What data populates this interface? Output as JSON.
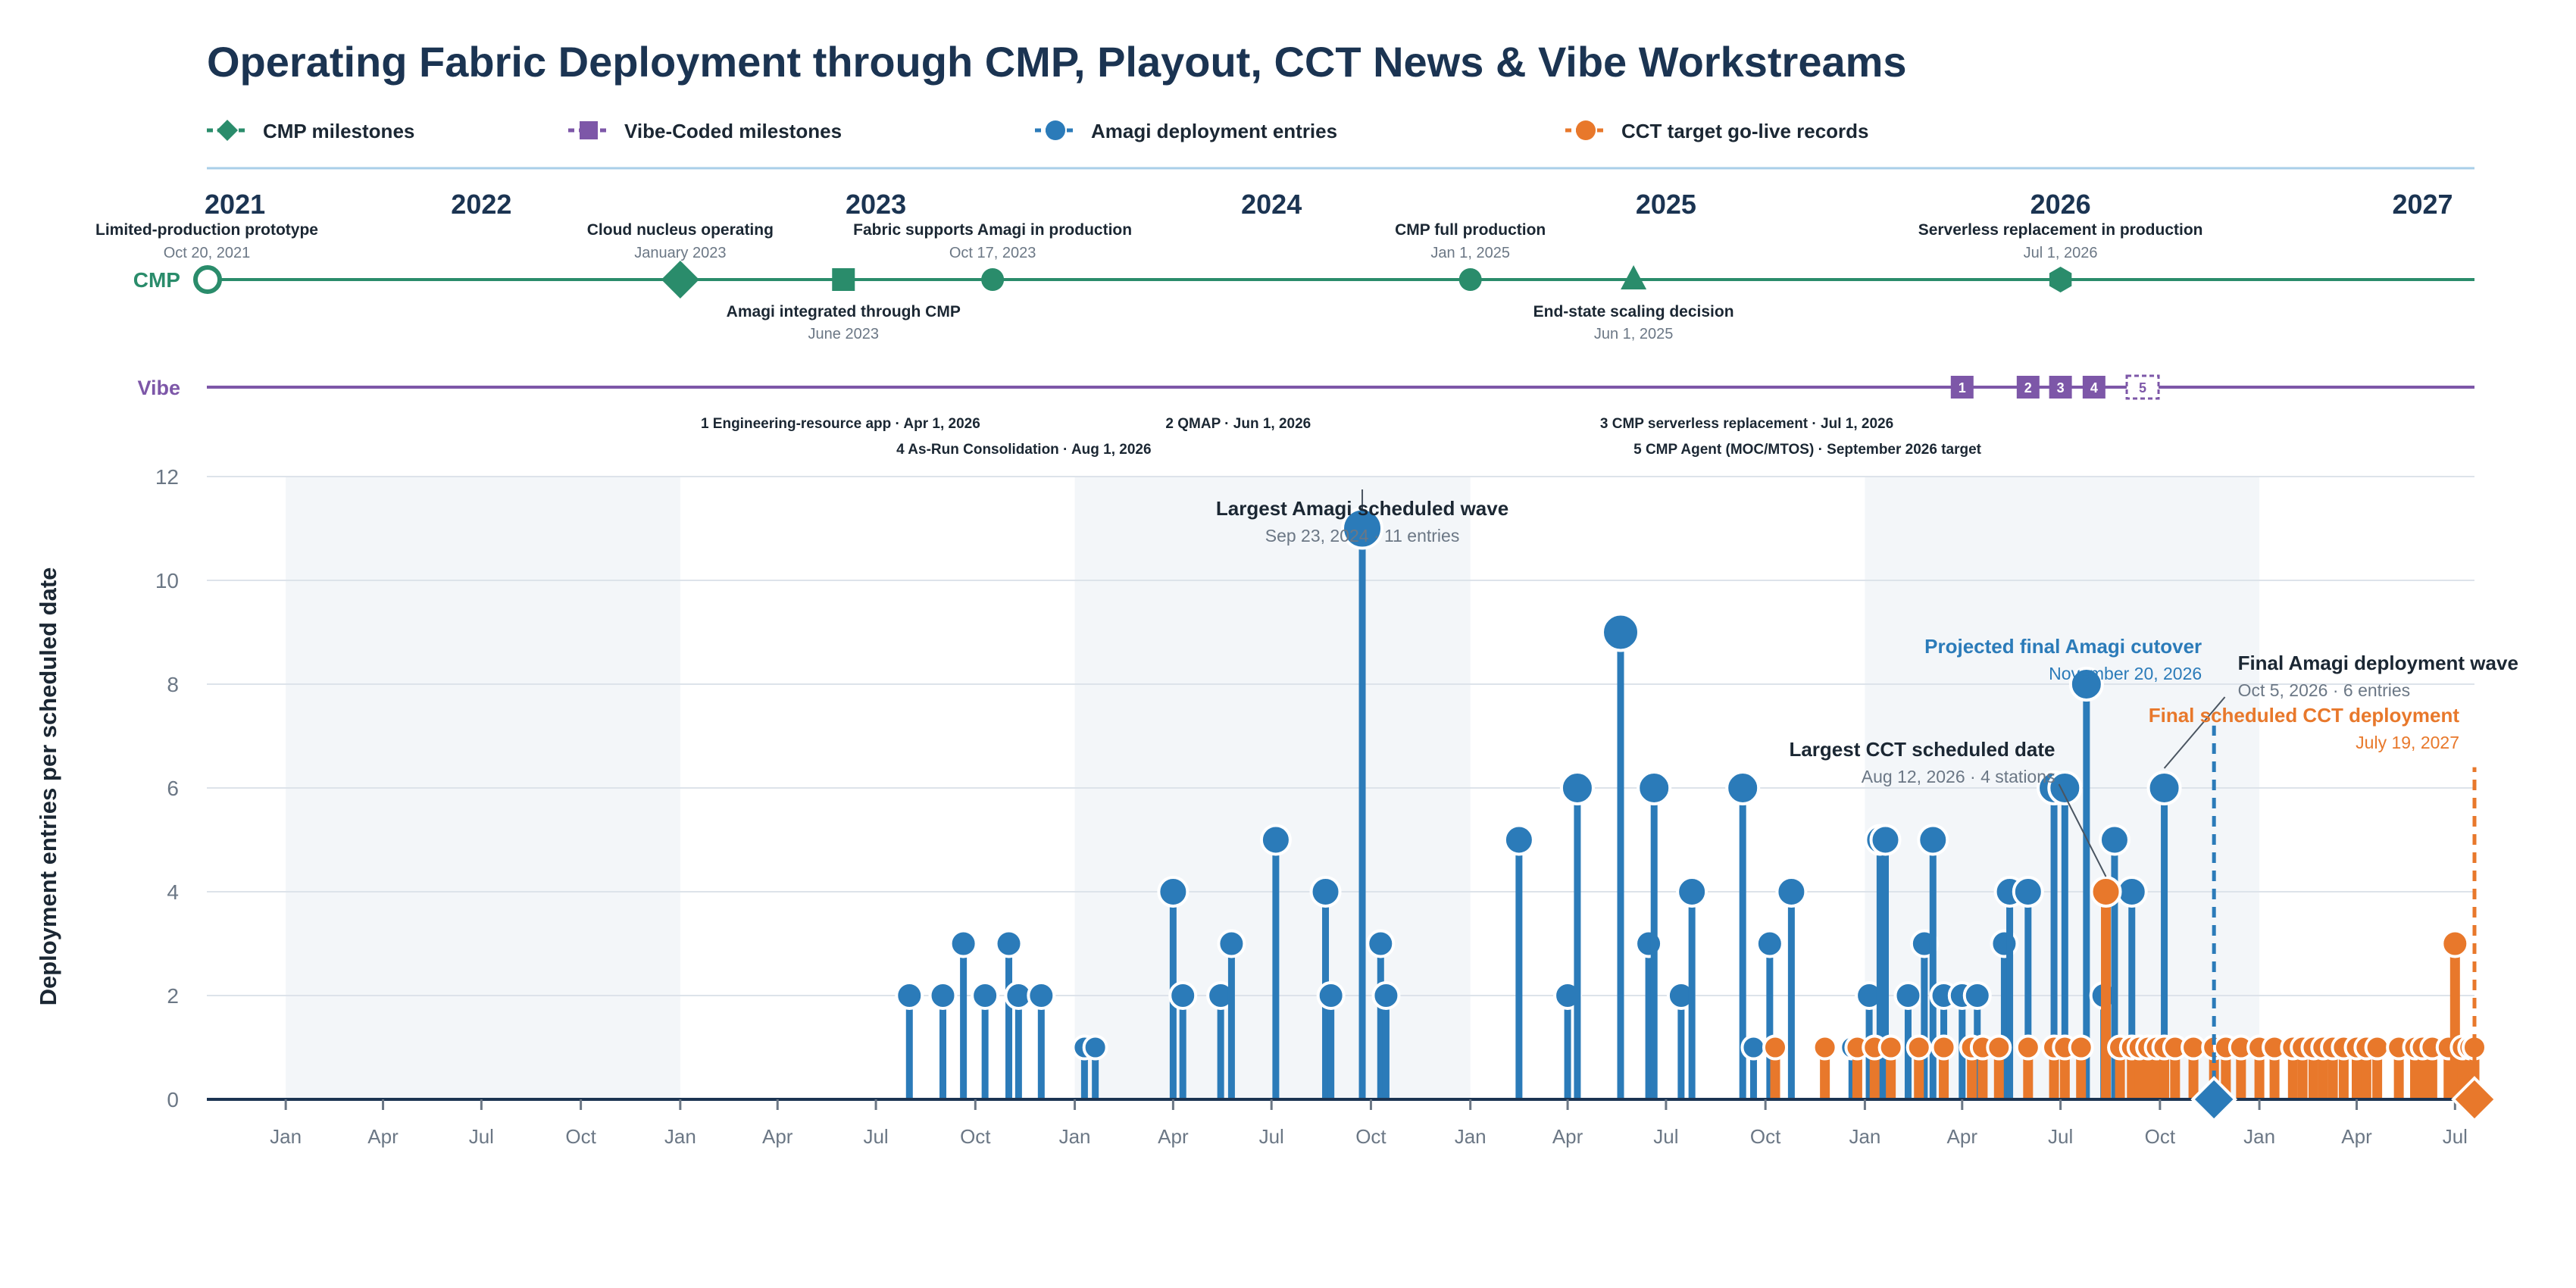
{
  "chart_data": {
    "type": "lollipop-timeline",
    "title": "Operating Fabric Deployment through CMP, Playout, CCT News & Vibe Workstreams",
    "legend": [
      {
        "label": "CMP milestones",
        "color": "#2a8c6b",
        "marker": "diamond"
      },
      {
        "label": "Vibe-Coded milestones",
        "color": "#7d57a8",
        "marker": "square"
      },
      {
        "label": "Amagi deployment entries",
        "color": "#2b7bb9",
        "marker": "circle"
      },
      {
        "label": "CCT target go-live records",
        "color": "#e8782b",
        "marker": "circle"
      }
    ],
    "colors": {
      "title": "#1b3452",
      "cmp": "#2a8c6b",
      "vibe": "#7d57a8",
      "amagi": "#2b7bb9",
      "cct": "#e8782b",
      "grid": "#dde3ea",
      "band": "#f3f6f9",
      "rule": "#a9cfe8",
      "muted": "#6b7785",
      "dark": "#1b2733"
    },
    "years": [
      "2021",
      "2022",
      "2023",
      "2024",
      "2025",
      "2026",
      "2027"
    ],
    "x_tick_labels": [
      "Jan",
      "Apr",
      "Jul",
      "Oct",
      "Jan",
      "Apr",
      "Jul",
      "Oct",
      "Jan",
      "Apr",
      "Jul",
      "Oct",
      "Jan",
      "Apr",
      "Jul",
      "Oct",
      "Jan",
      "Apr",
      "Jul",
      "Oct",
      "Jan",
      "Apr",
      "Jul"
    ],
    "x_range": [
      "2021-10-20",
      "2027-07-19"
    ],
    "ylabel": "Deployment entries per scheduled date",
    "ylim": [
      0,
      12
    ],
    "y_ticks": [
      0,
      2,
      4,
      6,
      8,
      10,
      12
    ],
    "grid": true,
    "cmp_track_label": "CMP",
    "cmp_milestones": [
      {
        "date": "2021-10-20",
        "title": "Limited-production prototype",
        "date_label": "Oct 20, 2021",
        "marker": "open-circle",
        "label_pos": "above"
      },
      {
        "date": "2023-01-01",
        "title": "Cloud nucleus operating",
        "date_label": "January 2023",
        "marker": "diamond",
        "label_pos": "above"
      },
      {
        "date": "2023-06-01",
        "title": "Amagi integrated through CMP",
        "date_label": "June 2023",
        "marker": "square",
        "label_pos": "below"
      },
      {
        "date": "2023-10-17",
        "title": "Fabric supports Amagi in production",
        "date_label": "Oct 17, 2023",
        "marker": "circle",
        "label_pos": "above"
      },
      {
        "date": "2025-01-01",
        "title": "CMP full production",
        "date_label": "Jan 1, 2025",
        "marker": "circle",
        "label_pos": "above"
      },
      {
        "date": "2025-06-01",
        "title": "End-state scaling decision",
        "date_label": "Jun 1, 2025",
        "marker": "triangle",
        "label_pos": "below"
      },
      {
        "date": "2026-07-01",
        "title": "Serverless replacement in production",
        "date_label": "Jul 1, 2026",
        "marker": "hexagon",
        "label_pos": "above"
      }
    ],
    "vibe_track_label": "Vibe",
    "vibe_milestones": [
      {
        "num": "1",
        "date": "2026-04-01",
        "dashed": false
      },
      {
        "num": "2",
        "date": "2026-06-01",
        "dashed": false
      },
      {
        "num": "3",
        "date": "2026-07-01",
        "dashed": false
      },
      {
        "num": "4",
        "date": "2026-08-01",
        "dashed": false
      },
      {
        "num": "5",
        "date": "2026-09-15",
        "dashed": true
      }
    ],
    "vibe_notes": [
      {
        "text": "1 Engineering-resource app · Apr 1, 2026",
        "anchor": "2023-01-20",
        "row": 0
      },
      {
        "text": "4 As-Run Consolidation · Aug 1, 2026",
        "anchor": "2023-07-20",
        "row": 1
      },
      {
        "text": "2 QMAP · Jun 1, 2026",
        "anchor": "2024-03-25",
        "row": 0
      },
      {
        "text": "3 CMP serverless replacement · Jul 1, 2026",
        "anchor": "2025-05-01",
        "row": 0
      },
      {
        "text": "5 CMP Agent (MOC/MTOS) · September 2026 target",
        "anchor": "2025-06-01",
        "row": 1
      }
    ],
    "series": [
      {
        "name": "Amagi deployment entries",
        "color": "#2b7bb9",
        "points": [
          [
            "2023-08-01",
            2
          ],
          [
            "2023-09-01",
            2
          ],
          [
            "2023-09-20",
            3
          ],
          [
            "2023-10-10",
            2
          ],
          [
            "2023-11-01",
            3
          ],
          [
            "2023-11-10",
            2
          ],
          [
            "2023-12-01",
            2
          ],
          [
            "2024-01-10",
            1
          ],
          [
            "2024-01-20",
            1
          ],
          [
            "2024-04-01",
            4
          ],
          [
            "2024-04-10",
            2
          ],
          [
            "2024-05-15",
            2
          ],
          [
            "2024-05-25",
            3
          ],
          [
            "2024-07-05",
            5
          ],
          [
            "2024-08-20",
            4
          ],
          [
            "2024-08-25",
            2
          ],
          [
            "2024-09-23",
            11
          ],
          [
            "2024-10-10",
            3
          ],
          [
            "2024-10-15",
            2
          ],
          [
            "2025-02-15",
            5
          ],
          [
            "2025-04-01",
            2
          ],
          [
            "2025-04-10",
            6
          ],
          [
            "2025-05-20",
            9
          ],
          [
            "2025-06-15",
            3
          ],
          [
            "2025-06-20",
            6
          ],
          [
            "2025-07-15",
            2
          ],
          [
            "2025-07-25",
            4
          ],
          [
            "2025-09-10",
            6
          ],
          [
            "2025-09-20",
            1
          ],
          [
            "2025-10-05",
            3
          ],
          [
            "2025-10-25",
            4
          ],
          [
            "2025-12-20",
            1
          ],
          [
            "2026-01-05",
            2
          ],
          [
            "2026-01-15",
            5
          ],
          [
            "2026-01-20",
            5
          ],
          [
            "2026-02-10",
            2
          ],
          [
            "2026-02-25",
            3
          ],
          [
            "2026-03-05",
            5
          ],
          [
            "2026-03-15",
            2
          ],
          [
            "2026-04-01",
            2
          ],
          [
            "2026-04-15",
            2
          ],
          [
            "2026-05-10",
            3
          ],
          [
            "2026-05-15",
            4
          ],
          [
            "2026-06-01",
            4
          ],
          [
            "2026-06-25",
            6
          ],
          [
            "2026-07-05",
            6
          ],
          [
            "2026-07-25",
            8
          ],
          [
            "2026-08-10",
            2
          ],
          [
            "2026-08-20",
            5
          ],
          [
            "2026-09-05",
            4
          ],
          [
            "2026-10-05",
            6
          ]
        ]
      },
      {
        "name": "CCT target go-live records",
        "color": "#e8782b",
        "points": [
          [
            "2025-10-10",
            1
          ],
          [
            "2025-11-25",
            1
          ],
          [
            "2025-12-25",
            1
          ],
          [
            "2026-01-10",
            1
          ],
          [
            "2026-01-25",
            1
          ],
          [
            "2026-02-20",
            1
          ],
          [
            "2026-03-15",
            1
          ],
          [
            "2026-04-10",
            1
          ],
          [
            "2026-04-20",
            1
          ],
          [
            "2026-05-05",
            1
          ],
          [
            "2026-06-01",
            1
          ],
          [
            "2026-06-25",
            1
          ],
          [
            "2026-07-05",
            1
          ],
          [
            "2026-07-20",
            1
          ],
          [
            "2026-08-12",
            4
          ],
          [
            "2026-08-25",
            1
          ],
          [
            "2026-09-05",
            1
          ],
          [
            "2026-09-12",
            1
          ],
          [
            "2026-09-20",
            1
          ],
          [
            "2026-09-28",
            1
          ],
          [
            "2026-10-05",
            1
          ],
          [
            "2026-10-15",
            1
          ],
          [
            "2026-11-01",
            1
          ],
          [
            "2026-11-20",
            1
          ],
          [
            "2026-12-01",
            1
          ],
          [
            "2026-12-15",
            1
          ],
          [
            "2027-01-01",
            1
          ],
          [
            "2027-01-15",
            1
          ],
          [
            "2027-02-01",
            1
          ],
          [
            "2027-02-10",
            1
          ],
          [
            "2027-02-20",
            1
          ],
          [
            "2027-03-01",
            1
          ],
          [
            "2027-03-10",
            1
          ],
          [
            "2027-03-20",
            1
          ],
          [
            "2027-04-01",
            1
          ],
          [
            "2027-04-10",
            1
          ],
          [
            "2027-04-20",
            1
          ],
          [
            "2027-05-10",
            1
          ],
          [
            "2027-05-25",
            1
          ],
          [
            "2027-06-01",
            1
          ],
          [
            "2027-06-10",
            1
          ],
          [
            "2027-06-25",
            1
          ],
          [
            "2027-07-01",
            3
          ],
          [
            "2027-07-08",
            1
          ],
          [
            "2027-07-15",
            1
          ],
          [
            "2027-07-19",
            1
          ]
        ]
      }
    ],
    "annotations": [
      {
        "title": "Largest Amagi scheduled wave",
        "subtitle": "Sep 23, 2024 · 11 entries",
        "date": "2024-09-23",
        "value": 11,
        "color": "#1b2733",
        "sub_color": "#6b7785"
      },
      {
        "title": "Largest CCT scheduled date",
        "subtitle": "Aug 12, 2026 · 4 stations",
        "date": "2026-08-12",
        "value": 4,
        "color": "#1b2733",
        "sub_color": "#6b7785"
      },
      {
        "title": "Projected final Amagi cutover",
        "subtitle": "November 20, 2026",
        "date": "2026-11-20",
        "value": 7.3,
        "color": "#2b7bb9",
        "sub_color": "#2b7bb9"
      },
      {
        "title": "Final Amagi deployment wave",
        "subtitle": "Oct 5, 2026 · 6 entries",
        "date": "2026-10-05",
        "value": 6,
        "color": "#1b2733",
        "sub_color": "#6b7785"
      },
      {
        "title": "Final scheduled CCT deployment",
        "subtitle": "July 19, 2027",
        "date": "2027-07-19",
        "value": 6.4,
        "color": "#e8782b",
        "sub_color": "#e8782b"
      }
    ]
  }
}
